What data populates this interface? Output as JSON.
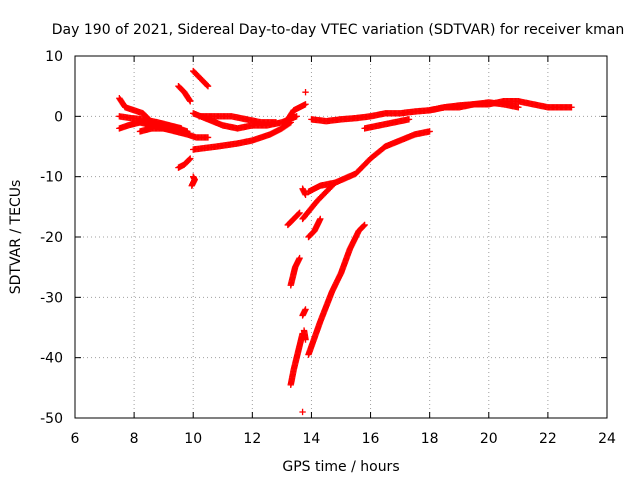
{
  "chart_data": {
    "type": "scatter",
    "title": "Day 190 of 2021, Sidereal Day-to-day VTEC variation (SDTVAR) for receiver kman",
    "xlabel": "GPS time / hours",
    "ylabel": "SDTVAR / TECUs",
    "xlim": [
      6,
      24
    ],
    "ylim": [
      -50,
      10
    ],
    "xticks": [
      6,
      8,
      10,
      12,
      14,
      16,
      18,
      20,
      22,
      24
    ],
    "yticks": [
      10,
      0,
      -10,
      -20,
      -30,
      -40,
      -50
    ],
    "grid": true,
    "marker": "+",
    "color": "#ff0000",
    "series": [
      {
        "name": "segment-1",
        "points": [
          [
            7.5,
            3.0
          ],
          [
            7.7,
            1.5
          ],
          [
            8.0,
            1.0
          ],
          [
            8.3,
            0.5
          ],
          [
            8.6,
            -1.0
          ],
          [
            9.0,
            -1.5
          ],
          [
            9.5,
            -2.0
          ],
          [
            9.8,
            -2.5
          ]
        ]
      },
      {
        "name": "segment-2",
        "points": [
          [
            7.5,
            -2.0
          ],
          [
            7.8,
            -1.5
          ],
          [
            8.2,
            -1.0
          ],
          [
            8.6,
            -1.5
          ],
          [
            9.0,
            -2.0
          ],
          [
            9.5,
            -2.5
          ]
        ]
      },
      {
        "name": "segment-3",
        "points": [
          [
            7.5,
            0.0
          ],
          [
            7.9,
            -0.3
          ],
          [
            8.3,
            -0.5
          ],
          [
            8.8,
            -1.0
          ],
          [
            9.2,
            -1.5
          ],
          [
            9.6,
            -2.0
          ]
        ]
      },
      {
        "name": "segment-4",
        "points": [
          [
            8.2,
            -2.5
          ],
          [
            8.6,
            -2.0
          ],
          [
            9.0,
            -2.0
          ],
          [
            9.4,
            -2.5
          ],
          [
            9.8,
            -3.0
          ],
          [
            10.1,
            -3.5
          ],
          [
            10.5,
            -3.5
          ]
        ]
      },
      {
        "name": "segment-5",
        "points": [
          [
            9.5,
            5.0
          ],
          [
            9.7,
            4.0
          ],
          [
            9.9,
            2.5
          ]
        ]
      },
      {
        "name": "segment-6",
        "points": [
          [
            10.0,
            7.5
          ],
          [
            10.3,
            6.0
          ],
          [
            10.5,
            5.0
          ]
        ]
      },
      {
        "name": "segment-7",
        "points": [
          [
            9.5,
            -8.5
          ],
          [
            9.7,
            -8.0
          ],
          [
            9.9,
            -7.0
          ]
        ]
      },
      {
        "name": "segment-8",
        "points": [
          [
            10.0,
            -10.0
          ],
          [
            10.05,
            -10.5
          ],
          [
            9.95,
            -11.5
          ]
        ]
      },
      {
        "name": "segment-9",
        "points": [
          [
            10.0,
            0.5
          ],
          [
            10.5,
            -0.5
          ],
          [
            11.0,
            -1.5
          ],
          [
            11.5,
            -2.0
          ],
          [
            12.0,
            -1.5
          ],
          [
            12.5,
            -1.5
          ],
          [
            13.0,
            -1.0
          ],
          [
            13.5,
            0.0
          ]
        ]
      },
      {
        "name": "segment-10",
        "points": [
          [
            10.0,
            -5.5
          ],
          [
            10.8,
            -5.0
          ],
          [
            11.5,
            -4.5
          ],
          [
            12.0,
            -4.0
          ],
          [
            12.6,
            -3.0
          ],
          [
            13.0,
            -2.0
          ],
          [
            13.3,
            -1.0
          ]
        ]
      },
      {
        "name": "segment-11",
        "points": [
          [
            10.2,
            0.0
          ],
          [
            10.7,
            0.0
          ],
          [
            11.3,
            0.0
          ],
          [
            11.8,
            -0.5
          ],
          [
            12.3,
            -1.0
          ],
          [
            12.8,
            -1.0
          ]
        ]
      },
      {
        "name": "segment-12",
        "points": [
          [
            13.2,
            -0.5
          ],
          [
            13.4,
            1.0
          ],
          [
            13.6,
            1.5
          ],
          [
            13.8,
            2.0
          ]
        ]
      },
      {
        "name": "segment-13",
        "points": [
          [
            13.2,
            -18.0
          ],
          [
            13.4,
            -17.0
          ],
          [
            13.6,
            -16.0
          ]
        ]
      },
      {
        "name": "segment-14",
        "points": [
          [
            13.7,
            -12.0
          ],
          [
            13.8,
            -13.0
          ]
        ]
      },
      {
        "name": "segment-15",
        "points": [
          [
            13.8,
            4.0
          ]
        ]
      },
      {
        "name": "segment-16",
        "points": [
          [
            13.3,
            -28.0
          ],
          [
            13.45,
            -25.0
          ],
          [
            13.6,
            -23.5
          ]
        ]
      },
      {
        "name": "segment-17",
        "points": [
          [
            13.3,
            -44.5
          ],
          [
            13.4,
            -42.0
          ],
          [
            13.5,
            -40.0
          ],
          [
            13.6,
            -38.0
          ],
          [
            13.7,
            -36.0
          ]
        ]
      },
      {
        "name": "segment-18",
        "points": [
          [
            13.7,
            -33.0
          ],
          [
            13.8,
            -32.0
          ]
        ]
      },
      {
        "name": "segment-19",
        "points": [
          [
            13.75,
            -35.5
          ],
          [
            13.8,
            -37.0
          ]
        ]
      },
      {
        "name": "segment-20",
        "points": [
          [
            13.7,
            -49.0
          ]
        ]
      },
      {
        "name": "segment-21",
        "points": [
          [
            13.7,
            -17.0
          ],
          [
            14.2,
            -14.0
          ],
          [
            14.8,
            -11.0
          ],
          [
            15.5,
            -9.5
          ],
          [
            16.0,
            -7.0
          ],
          [
            16.5,
            -5.0
          ],
          [
            17.0,
            -4.0
          ],
          [
            17.5,
            -3.0
          ],
          [
            18.0,
            -2.5
          ]
        ]
      },
      {
        "name": "segment-22",
        "points": [
          [
            13.9,
            -20.0
          ],
          [
            14.1,
            -19.0
          ],
          [
            14.3,
            -17.0
          ]
        ]
      },
      {
        "name": "segment-23",
        "points": [
          [
            13.9,
            -12.5
          ],
          [
            14.3,
            -11.5
          ],
          [
            14.8,
            -11.0
          ]
        ]
      },
      {
        "name": "segment-24",
        "points": [
          [
            13.9,
            -39.5
          ],
          [
            14.3,
            -34.0
          ],
          [
            14.7,
            -29.0
          ],
          [
            15.0,
            -26.0
          ],
          [
            15.3,
            -22.0
          ],
          [
            15.6,
            -19.0
          ],
          [
            15.8,
            -18.0
          ]
        ]
      },
      {
        "name": "segment-25",
        "points": [
          [
            14.0,
            -0.5
          ],
          [
            14.5,
            -0.8
          ],
          [
            15.0,
            -0.5
          ],
          [
            15.5,
            -0.3
          ],
          [
            16.0,
            0.0
          ],
          [
            16.5,
            0.5
          ],
          [
            17.0,
            0.5
          ],
          [
            17.5,
            0.8
          ],
          [
            18.0,
            1.0
          ],
          [
            18.5,
            1.5
          ],
          [
            19.0,
            1.5
          ],
          [
            19.5,
            2.0
          ],
          [
            20.0,
            2.0
          ],
          [
            20.5,
            2.5
          ],
          [
            21.0,
            2.5
          ],
          [
            21.5,
            2.0
          ],
          [
            22.0,
            1.5
          ],
          [
            22.5,
            1.5
          ],
          [
            22.8,
            1.5
          ]
        ]
      },
      {
        "name": "segment-26",
        "points": [
          [
            15.8,
            -2.0
          ],
          [
            16.3,
            -1.5
          ],
          [
            16.8,
            -1.0
          ],
          [
            17.3,
            -0.5
          ]
        ]
      },
      {
        "name": "segment-27",
        "points": [
          [
            18.0,
            1.0
          ],
          [
            18.5,
            1.5
          ],
          [
            19.0,
            1.8
          ],
          [
            19.5,
            2.0
          ],
          [
            20.0,
            2.3
          ],
          [
            20.5,
            2.0
          ],
          [
            21.0,
            1.5
          ]
        ]
      }
    ]
  }
}
